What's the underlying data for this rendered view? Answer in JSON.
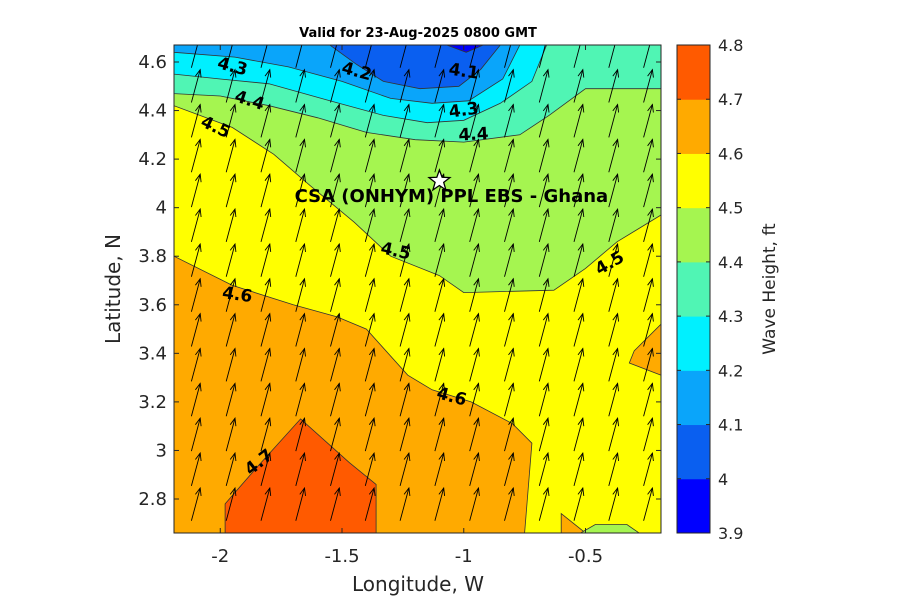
{
  "chart_data": {
    "type": "heatmap",
    "title": "Valid for 23-Aug-2025 0800 GMT",
    "xlabel": "Longitude, W",
    "ylabel": "Latitude, N",
    "xlim": [
      -2.19,
      -0.19
    ],
    "ylim": [
      2.66,
      4.67
    ],
    "x_ticks": [
      -2,
      -1.5,
      -1,
      -0.5
    ],
    "x_tick_labels": [
      "-2",
      "-1.5",
      "-1",
      "-0.5"
    ],
    "y_ticks": [
      2.8,
      3.0,
      3.2,
      3.4,
      3.6,
      3.8,
      4.0,
      4.2,
      4.4,
      4.6
    ],
    "y_tick_labels": [
      "2.8",
      "3",
      "3.2",
      "3.4",
      "3.6",
      "3.8",
      "4",
      "4.2",
      "4.4",
      "4.6"
    ],
    "colorbar": {
      "label": "Wave Height, ft",
      "ticks": [
        "3.9",
        "4",
        "4.1",
        "4.2",
        "4.3",
        "4.4",
        "4.5",
        "4.6",
        "4.7",
        "4.8"
      ],
      "levels": [
        3.9,
        4.0,
        4.1,
        4.2,
        4.3,
        4.4,
        4.5,
        4.6,
        4.7,
        4.8
      ],
      "colors": [
        "#0000ff",
        "#0a5ff0",
        "#0aa5fa",
        "#00f0ff",
        "#50f5b4",
        "#a5f550",
        "#ffff00",
        "#ffaa00",
        "#ff5a00"
      ]
    },
    "grid": false,
    "regions": [
      {
        "level": 4.0,
        "points": [
          [
            -1.07,
            4.67
          ],
          [
            -0.92,
            4.67
          ],
          [
            -0.99,
            4.64
          ]
        ]
      },
      {
        "level": 4.1,
        "points": [
          [
            -1.55,
            4.67
          ],
          [
            -0.85,
            4.67
          ],
          [
            -0.93,
            4.57
          ],
          [
            -1.02,
            4.5
          ],
          [
            -1.18,
            4.49
          ],
          [
            -1.33,
            4.52
          ],
          [
            -1.44,
            4.59
          ]
        ]
      },
      {
        "level": 4.2,
        "points": [
          [
            -2.19,
            4.67
          ],
          [
            -0.77,
            4.67
          ],
          [
            -0.84,
            4.53
          ],
          [
            -0.98,
            4.44
          ],
          [
            -1.13,
            4.43
          ],
          [
            -1.3,
            4.45
          ],
          [
            -1.5,
            4.52
          ],
          [
            -1.72,
            4.58
          ],
          [
            -1.94,
            4.62
          ],
          [
            -2.19,
            4.64
          ]
        ]
      },
      {
        "level": 4.3,
        "points": [
          [
            -2.19,
            4.67
          ],
          [
            -0.66,
            4.67
          ],
          [
            -0.72,
            4.52
          ],
          [
            -0.85,
            4.43
          ],
          [
            -1.0,
            4.36
          ],
          [
            -1.15,
            4.35
          ],
          [
            -1.33,
            4.38
          ],
          [
            -1.55,
            4.44
          ],
          [
            -1.8,
            4.51
          ],
          [
            -2.0,
            4.53
          ],
          [
            -2.19,
            4.55
          ]
        ]
      },
      {
        "level": 4.4,
        "points": [
          [
            -2.19,
            4.67
          ],
          [
            -0.19,
            4.67
          ],
          [
            -0.19,
            4.49
          ],
          [
            -0.5,
            4.49
          ],
          [
            -0.65,
            4.38
          ],
          [
            -0.77,
            4.3
          ],
          [
            -1.0,
            4.27
          ],
          [
            -1.2,
            4.28
          ],
          [
            -1.4,
            4.31
          ],
          [
            -1.6,
            4.37
          ],
          [
            -1.8,
            4.42
          ],
          [
            -2.0,
            4.46
          ],
          [
            -2.19,
            4.47
          ]
        ]
      },
      {
        "level": 4.5,
        "points": [
          [
            -2.19,
            4.67
          ],
          [
            -0.19,
            4.67
          ],
          [
            -0.19,
            3.97
          ],
          [
            -0.37,
            3.86
          ],
          [
            -0.5,
            3.75
          ],
          [
            -0.63,
            3.66
          ],
          [
            -1.0,
            3.65
          ],
          [
            -1.1,
            3.72
          ],
          [
            -1.3,
            3.8
          ],
          [
            -1.45,
            3.94
          ],
          [
            -1.63,
            4.09
          ],
          [
            -1.78,
            4.22
          ],
          [
            -1.95,
            4.33
          ],
          [
            -2.19,
            4.42
          ]
        ]
      },
      {
        "level": 4.6,
        "points": [
          [
            -2.19,
            4.67
          ],
          [
            -0.19,
            4.67
          ],
          [
            -0.19,
            2.66
          ],
          [
            -0.5,
            2.66
          ],
          [
            -0.6,
            2.74
          ],
          [
            -0.6,
            2.66
          ],
          [
            -0.75,
            2.66
          ],
          [
            -0.72,
            3.03
          ],
          [
            -0.8,
            3.11
          ],
          [
            -0.97,
            3.2
          ],
          [
            -1.13,
            3.25
          ],
          [
            -1.23,
            3.31
          ],
          [
            -1.4,
            3.5
          ],
          [
            -1.52,
            3.55
          ],
          [
            -1.7,
            3.6
          ],
          [
            -1.95,
            3.68
          ],
          [
            -2.19,
            3.8
          ]
        ]
      },
      {
        "level": 4.6,
        "points": [
          [
            -0.19,
            3.52
          ],
          [
            -0.3,
            3.41
          ],
          [
            -0.32,
            3.36
          ],
          [
            -0.19,
            3.31
          ]
        ]
      },
      {
        "level": 4.7,
        "points": [
          [
            -1.98,
            2.66
          ],
          [
            -1.36,
            2.66
          ],
          [
            -1.36,
            2.86
          ],
          [
            -1.47,
            2.95
          ],
          [
            -1.67,
            3.13
          ],
          [
            -1.85,
            2.93
          ],
          [
            -1.98,
            2.78
          ]
        ]
      }
    ],
    "contour_labels": [
      {
        "text": "4.3",
        "x": -1.95,
        "y": 4.58,
        "angle": 15
      },
      {
        "text": "4.2",
        "x": -1.44,
        "y": 4.56,
        "angle": 15
      },
      {
        "text": "4.1",
        "x": -1.0,
        "y": 4.56,
        "angle": 8
      },
      {
        "text": "4.4",
        "x": -1.88,
        "y": 4.44,
        "angle": 18
      },
      {
        "text": "4.3",
        "x": -1.0,
        "y": 4.4,
        "angle": -8
      },
      {
        "text": "4.5",
        "x": -2.02,
        "y": 4.33,
        "angle": 25
      },
      {
        "text": "4.4",
        "x": -0.96,
        "y": 4.3,
        "angle": -3
      },
      {
        "text": "4.5",
        "x": -1.28,
        "y": 3.82,
        "angle": 12
      },
      {
        "text": "4.5",
        "x": -0.4,
        "y": 3.77,
        "angle": -30
      },
      {
        "text": "4.6",
        "x": -1.93,
        "y": 3.64,
        "angle": 8
      },
      {
        "text": "4.6",
        "x": -1.05,
        "y": 3.22,
        "angle": 15
      },
      {
        "text": "4.7",
        "x": -1.84,
        "y": 2.95,
        "angle": -38
      }
    ],
    "annotation": {
      "text": "CSA (ONHYM) PPL EBS  - Ghana",
      "x": -1.1,
      "y": 4.11,
      "marker": "star"
    },
    "vectors": {
      "nx": 14,
      "ny": 14,
      "direction_deg_from_north": 15
    }
  }
}
